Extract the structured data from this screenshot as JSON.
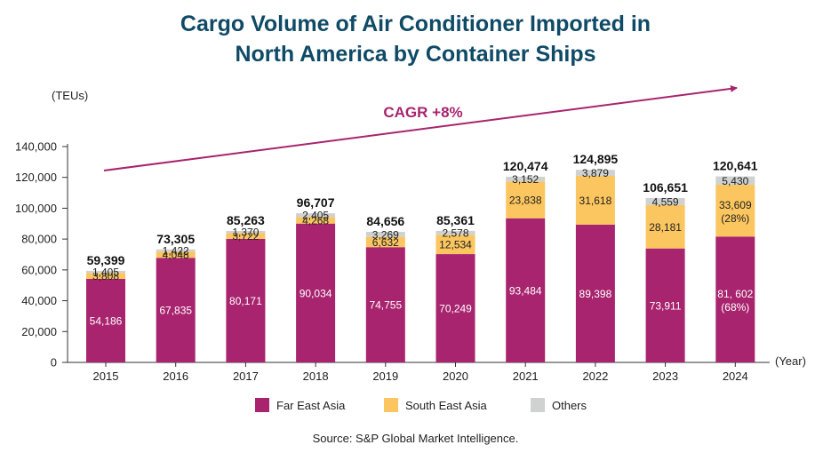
{
  "title_line1": "Cargo Volume of Air Conditioner Imported in",
  "title_line2": "North America by Container Ships",
  "source": "Source: S&P Global Market Intelligence.",
  "colors": {
    "title": "#0f4a66",
    "far_east_asia": "#a8246e",
    "south_east_asia": "#fbc65f",
    "others": "#cfd2d0",
    "cagr_arrow": "#a8246e"
  },
  "chart_data": {
    "type": "bar",
    "stacked": true,
    "title": "Cargo Volume of Air Conditioner Imported in North America by Container Ships",
    "ylabel": "(TEUs)",
    "xlabel": "(Year)",
    "ylim": [
      0,
      140000
    ],
    "yticks": [
      0,
      20000,
      40000,
      60000,
      80000,
      100000,
      120000,
      140000
    ],
    "ytick_labels": [
      "0",
      "20,000",
      "40,000",
      "60,000",
      "80,000",
      "100,000",
      "120,000",
      "140,000"
    ],
    "categories": [
      "2015",
      "2016",
      "2017",
      "2018",
      "2019",
      "2020",
      "2021",
      "2022",
      "2023",
      "2024"
    ],
    "series": [
      {
        "name": "Far East Asia",
        "color": "#a8246e",
        "values": [
          54186,
          67835,
          80171,
          90034,
          74755,
          70249,
          93484,
          89398,
          73911,
          81602
        ],
        "labels": [
          "54,186",
          "67,835",
          "80,171",
          "90,034",
          "74,755",
          "70,249",
          "93,484",
          "89,398",
          "73,911",
          "81, 602"
        ],
        "label_notes": [
          "",
          "",
          "",
          "",
          "",
          "",
          "",
          "",
          "",
          "(68%)"
        ]
      },
      {
        "name": "South East Asia",
        "color": "#fbc65f",
        "values": [
          3808,
          4048,
          3722,
          4268,
          6632,
          12534,
          23838,
          31618,
          28181,
          33609
        ],
        "labels": [
          "3,808",
          "4,048",
          "3,722",
          "4,268",
          "6,632",
          "12,534",
          "23,838",
          "31,618",
          "28,181",
          "33,609"
        ],
        "label_notes": [
          "",
          "",
          "",
          "",
          "",
          "",
          "",
          "",
          "",
          "(28%)"
        ]
      },
      {
        "name": "Others",
        "color": "#cfd2d0",
        "values": [
          1405,
          1422,
          1370,
          2405,
          3269,
          2578,
          3152,
          3879,
          4559,
          5430
        ],
        "labels": [
          "1,405",
          "1,422",
          "1,370",
          "2,405",
          "3,269",
          "2,578",
          "3,152",
          "3,879",
          "4,559",
          "5,430"
        ]
      }
    ],
    "totals": [
      59399,
      73305,
      85263,
      96707,
      84656,
      85361,
      120474,
      124895,
      106651,
      120641
    ],
    "total_labels": [
      "59,399",
      "73,305",
      "85,263",
      "96,707",
      "84,656",
      "85,361",
      "120,474",
      "124,895",
      "106,651",
      "120,641"
    ],
    "annotation": "CAGR +8%",
    "legend_position": "bottom",
    "grid": false
  }
}
